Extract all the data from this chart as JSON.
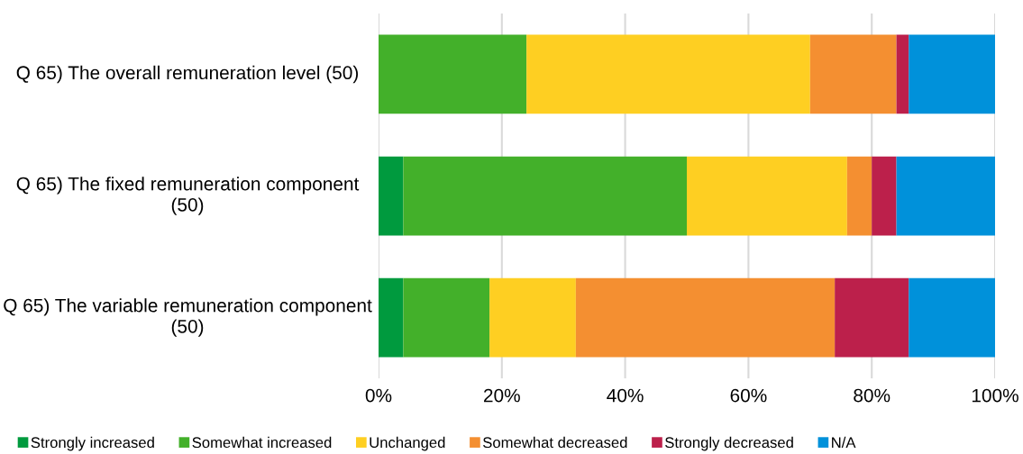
{
  "chart_data": {
    "type": "bar",
    "orientation": "horizontal",
    "stacked": true,
    "categories": [
      "Q 65) The overall remuneration level (50)",
      "Q 65) The fixed remuneration component (50)",
      "Q 65) The variable remuneration component (50)"
    ],
    "series": [
      {
        "name": "Strongly increased",
        "color": "#009a3e",
        "values": [
          0,
          4,
          4
        ]
      },
      {
        "name": "Somewhat increased",
        "color": "#43b02a",
        "values": [
          24,
          46,
          14
        ]
      },
      {
        "name": "Unchanged",
        "color": "#fecf22",
        "values": [
          46,
          26,
          14
        ]
      },
      {
        "name": "Somewhat decreased",
        "color": "#f48f31",
        "values": [
          14,
          4,
          42
        ]
      },
      {
        "name": "Strongly decreased",
        "color": "#bc204b",
        "values": [
          2,
          4,
          12
        ]
      },
      {
        "name": "N/A",
        "color": "#0091da",
        "values": [
          14,
          16,
          14
        ]
      }
    ],
    "xlim": [
      0,
      100
    ],
    "xticks": [
      {
        "value": 0,
        "label": "0%"
      },
      {
        "value": 20,
        "label": "20%"
      },
      {
        "value": 40,
        "label": "40%"
      },
      {
        "value": 60,
        "label": "60%"
      },
      {
        "value": 80,
        "label": "80%"
      },
      {
        "value": 100,
        "label": "100%"
      }
    ],
    "grid": "x",
    "legend": "bottom"
  }
}
